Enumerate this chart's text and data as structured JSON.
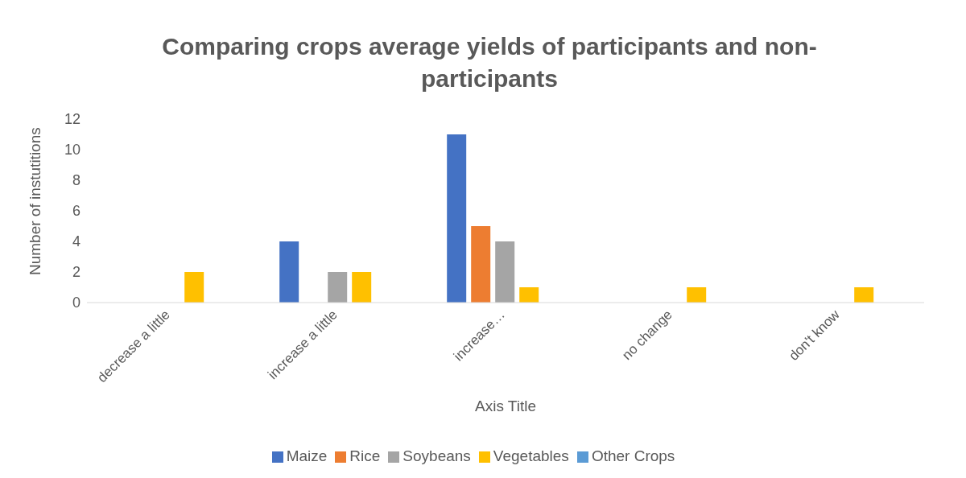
{
  "chart_data": {
    "type": "bar",
    "title": "Comparing crops average yields of participants and non-participants",
    "xlabel": "Axis Title",
    "ylabel": "Number of instutitions",
    "categories": [
      "decrease a little",
      "increase a little",
      "increase…",
      "no change",
      "don't know"
    ],
    "series": [
      {
        "name": "Maize",
        "color": "#4472c4",
        "values": [
          null,
          4,
          11,
          null,
          null
        ]
      },
      {
        "name": "Rice",
        "color": "#ed7d31",
        "values": [
          null,
          null,
          5,
          null,
          null
        ]
      },
      {
        "name": "Soybeans",
        "color": "#a5a5a5",
        "values": [
          null,
          2,
          4,
          null,
          null
        ]
      },
      {
        "name": "Vegetables",
        "color": "#ffc000",
        "values": [
          2,
          2,
          1,
          1,
          1
        ]
      },
      {
        "name": "Other Crops",
        "color": "#5b9bd5",
        "values": [
          null,
          null,
          null,
          null,
          null
        ]
      }
    ],
    "ylim": [
      0,
      12
    ],
    "yticks": [
      0,
      2,
      4,
      6,
      8,
      10,
      12
    ],
    "grid": false,
    "legend": "bottom"
  }
}
